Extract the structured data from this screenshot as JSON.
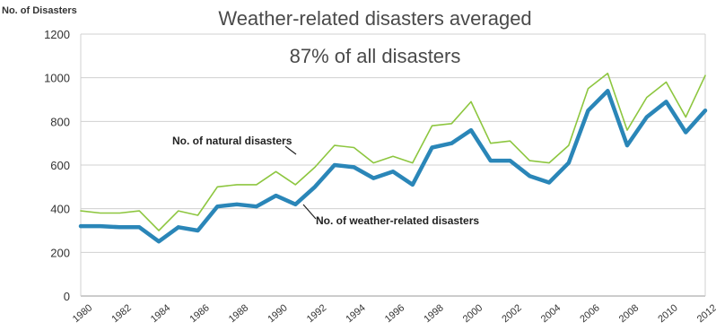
{
  "chart_data": {
    "type": "line",
    "title_line1": "Weather-related disasters averaged",
    "title_line2": "87% of all disasters",
    "ylabel": "No. of Disasters",
    "xlabel": "",
    "ylim": [
      0,
      1200
    ],
    "yticks": [
      0,
      200,
      400,
      600,
      800,
      1000,
      1200
    ],
    "xticks": [
      1980,
      1982,
      1984,
      1986,
      1988,
      1990,
      1992,
      1994,
      1996,
      1998,
      2000,
      2002,
      2004,
      2006,
      2008,
      2010,
      2012
    ],
    "grid": "horizontal",
    "x": [
      1980,
      1981,
      1982,
      1983,
      1984,
      1985,
      1986,
      1987,
      1988,
      1989,
      1990,
      1991,
      1992,
      1993,
      1994,
      1995,
      1996,
      1997,
      1998,
      1999,
      2000,
      2001,
      2002,
      2003,
      2004,
      2005,
      2006,
      2007,
      2008,
      2009,
      2010,
      2011,
      2012
    ],
    "series": [
      {
        "name": "No. of natural disasters",
        "color": "#8dc63f",
        "values": [
          390,
          380,
          380,
          390,
          300,
          390,
          370,
          500,
          510,
          510,
          570,
          510,
          590,
          690,
          680,
          610,
          640,
          610,
          780,
          790,
          890,
          700,
          710,
          620,
          610,
          690,
          950,
          1020,
          760,
          910,
          980,
          820,
          1010
        ]
      },
      {
        "name": "No. of weather-related disasters",
        "color": "#2a86b8",
        "values": [
          320,
          320,
          315,
          315,
          250,
          315,
          300,
          410,
          420,
          410,
          460,
          420,
          500,
          600,
          590,
          540,
          570,
          510,
          680,
          700,
          760,
          620,
          620,
          550,
          520,
          610,
          850,
          940,
          690,
          820,
          890,
          750,
          850
        ]
      }
    ],
    "annotations": [
      {
        "text": "No. of natural disasters",
        "series": 0
      },
      {
        "text": "No. of weather-related disasters",
        "series": 1
      }
    ]
  }
}
